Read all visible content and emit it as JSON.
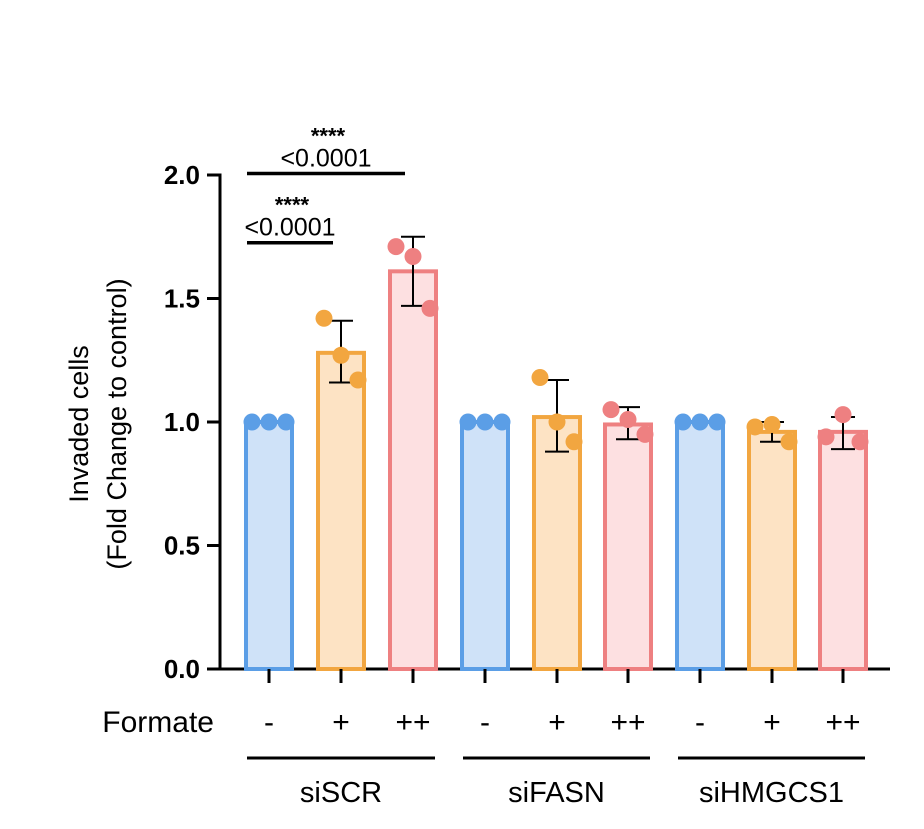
{
  "chart_data": {
    "type": "bar",
    "ylabel_line1": "Invaded cells",
    "ylabel_line2": "(Fold Change to control)",
    "ylim": [
      0,
      2.0
    ],
    "yticks": [
      0.0,
      0.5,
      1.0,
      1.5,
      2.0
    ],
    "ytick_labels": [
      "0.0",
      "0.5",
      "1.0",
      "1.5",
      "2.0"
    ],
    "row_label": "Formate",
    "colors": {
      "none": "#5b9ee6",
      "plus": "#f2a640",
      "plusplus": "#ee8081"
    },
    "fills": {
      "none": "#cfe2f8",
      "plus": "#fde3c4",
      "plusplus": "#fde0e1"
    },
    "groups": [
      {
        "name": "siSCR",
        "bars": [
          {
            "label": "-",
            "kind": "none",
            "mean": 1.0,
            "err_lo": 1.0,
            "err_hi": 1.0,
            "points": [
              1.0,
              1.0,
              1.0
            ]
          },
          {
            "label": "+",
            "kind": "plus",
            "mean": 1.28,
            "err_lo": 1.16,
            "err_hi": 1.41,
            "points": [
              1.42,
              1.27,
              1.17
            ]
          },
          {
            "label": "++",
            "kind": "plusplus",
            "mean": 1.61,
            "err_lo": 1.47,
            "err_hi": 1.75,
            "points": [
              1.71,
              1.67,
              1.46
            ]
          }
        ]
      },
      {
        "name": "siFASN",
        "bars": [
          {
            "label": "-",
            "kind": "none",
            "mean": 1.0,
            "err_lo": 1.0,
            "err_hi": 1.0,
            "points": [
              1.0,
              1.0,
              1.0
            ]
          },
          {
            "label": "+",
            "kind": "plus",
            "mean": 1.02,
            "err_lo": 0.88,
            "err_hi": 1.17,
            "points": [
              1.18,
              1.0,
              0.92
            ]
          },
          {
            "label": "++",
            "kind": "plusplus",
            "mean": 0.99,
            "err_lo": 0.93,
            "err_hi": 1.06,
            "points": [
              1.05,
              1.01,
              0.95
            ]
          }
        ]
      },
      {
        "name": "siHMGCS1",
        "bars": [
          {
            "label": "-",
            "kind": "none",
            "mean": 1.0,
            "err_lo": 1.0,
            "err_hi": 1.0,
            "points": [
              1.0,
              1.0,
              1.0
            ]
          },
          {
            "label": "+",
            "kind": "plus",
            "mean": 0.96,
            "err_lo": 0.92,
            "err_hi": 1.0,
            "points": [
              0.98,
              0.99,
              0.92
            ]
          },
          {
            "label": "++",
            "kind": "plusplus",
            "mean": 0.96,
            "err_lo": 0.89,
            "err_hi": 1.02,
            "points": [
              0.94,
              1.03,
              0.92
            ]
          }
        ]
      }
    ],
    "annotations": [
      {
        "from_bar": 0,
        "to_bar": 1,
        "y": 1.73,
        "pvalue": "<0.0001",
        "stars": "****"
      },
      {
        "from_bar": 0,
        "to_bar": 2,
        "y": 2.01,
        "pvalue": "<0.0001",
        "stars": "****"
      }
    ]
  }
}
